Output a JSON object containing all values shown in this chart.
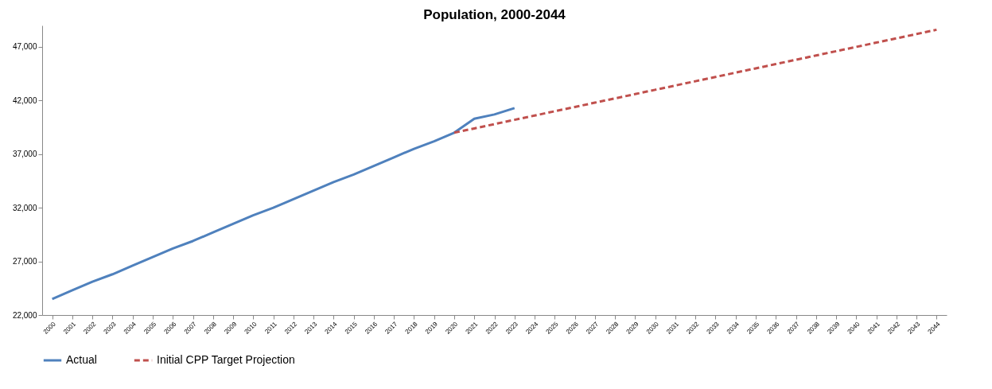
{
  "chart_data": {
    "type": "line",
    "title": "Population, 2000-2044",
    "categories": [
      "2000",
      "2001",
      "2002",
      "2003",
      "2004",
      "2005",
      "2006",
      "2007",
      "2008",
      "2009",
      "2010",
      "2011",
      "2012",
      "2013",
      "2014",
      "2015",
      "2016",
      "2017",
      "2018",
      "2019",
      "2020",
      "2021",
      "2022",
      "2023",
      "2024",
      "2025",
      "2026",
      "2027",
      "2028",
      "2029",
      "2030",
      "2031",
      "2032",
      "2033",
      "2034",
      "2035",
      "2036",
      "2037",
      "2038",
      "2039",
      "2040",
      "2041",
      "2042",
      "2043",
      "2044"
    ],
    "series": [
      {
        "name": "Actual",
        "color": "#4f81bd",
        "line_style": "solid",
        "values": [
          23500,
          24300,
          25100,
          25800,
          26600,
          27400,
          28200,
          28900,
          29700,
          30500,
          31300,
          32000,
          32800,
          33600,
          34400,
          35100,
          35900,
          36700,
          37500,
          38200,
          39000,
          40300,
          40700,
          41300,
          null,
          null,
          null,
          null,
          null,
          null,
          null,
          null,
          null,
          null,
          null,
          null,
          null,
          null,
          null,
          null,
          null,
          null,
          null,
          null,
          null
        ]
      },
      {
        "name": "Initial CPP Target Projection",
        "color": "#c0504d",
        "line_style": "dashed",
        "values": [
          null,
          null,
          null,
          null,
          null,
          null,
          null,
          null,
          null,
          null,
          null,
          null,
          null,
          null,
          null,
          null,
          null,
          null,
          null,
          null,
          39000,
          39400,
          39800,
          40200,
          40600,
          41000,
          41400,
          41800,
          42200,
          42600,
          43000,
          43400,
          43800,
          44200,
          44600,
          45000,
          45400,
          45800,
          46200,
          46600,
          47000,
          47400,
          47800,
          48200,
          48600
        ]
      }
    ],
    "ylim": [
      22000,
      49000
    ],
    "yticks": [
      {
        "value": 22000,
        "label": "22,000"
      },
      {
        "value": 27000,
        "label": "27,000"
      },
      {
        "value": 32000,
        "label": "32,000"
      },
      {
        "value": 37000,
        "label": "37,000"
      },
      {
        "value": 42000,
        "label": "42,000"
      },
      {
        "value": 47000,
        "label": "47,000"
      }
    ],
    "grid": false,
    "legend": "bottom",
    "marker": "none"
  }
}
